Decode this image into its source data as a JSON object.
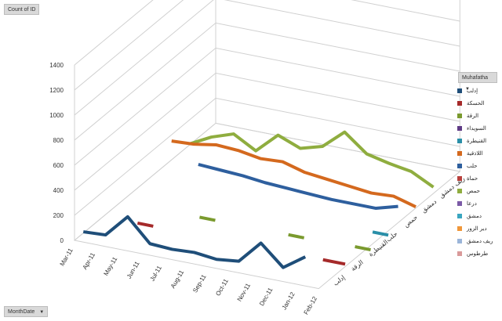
{
  "pivot": {
    "value_field": "Count of ID",
    "row_field": "MonthDate",
    "legend_field": "Muhafatha"
  },
  "chart_data": {
    "type": "line-3d",
    "title": "",
    "ylim": [
      0,
      1400
    ],
    "y_ticks": [
      "0",
      "200",
      "400",
      "600",
      "800",
      "1000",
      "1200",
      "1400"
    ],
    "categories": [
      "Mar-11",
      "Apr-11",
      "May-11",
      "Jun-11",
      "Jul-11",
      "Aug-11",
      "Sep-11",
      "Oct-11",
      "Nov-11",
      "Dec-11",
      "Jan-12",
      "Feb-12"
    ],
    "depth_labels": [
      "إدلب",
      "الرقة",
      "القنيطرة",
      "حلب",
      "حمص",
      "دمشق",
      "ريف دمشق"
    ],
    "legend": [
      {
        "name": "إدلب",
        "color": "#1f4e79"
      },
      {
        "name": "الحسكة",
        "color": "#a52a2a"
      },
      {
        "name": "الرقة",
        "color": "#7a9a2e"
      },
      {
        "name": "السويداء",
        "color": "#5f3b86"
      },
      {
        "name": "القنيطرة",
        "color": "#2a8fa8"
      },
      {
        "name": "اللاذقية",
        "color": "#d4691e"
      },
      {
        "name": "حلب",
        "color": "#2e5f9e"
      },
      {
        "name": "حماة",
        "color": "#b8403c"
      },
      {
        "name": "حمص",
        "color": "#8fad3f"
      },
      {
        "name": "درعا",
        "color": "#7b5aa6"
      },
      {
        "name": "دمشق",
        "color": "#3aa6c0"
      },
      {
        "name": "دير الزور",
        "color": "#f0973a"
      },
      {
        "name": "ريف دمشق",
        "color": "#9bb5d9"
      },
      {
        "name": "طرطوس",
        "color": "#d99a9a"
      }
    ],
    "series": [
      {
        "name": "إدلب",
        "values": [
          10,
          20,
          200,
          20,
          10,
          20,
          0,
          20,
          200,
          40,
          160,
          null
        ]
      },
      {
        "name": "الحسكة",
        "values": [
          null,
          null,
          20,
          null,
          null,
          null,
          null,
          null,
          null,
          null,
          20,
          20
        ]
      },
      {
        "name": "الرقة",
        "values": [
          null,
          null,
          null,
          null,
          20,
          null,
          null,
          null,
          20,
          null,
          null,
          30
        ]
      },
      {
        "name": "القنيطرة",
        "values": [
          null,
          null,
          null,
          null,
          null,
          null,
          null,
          null,
          null,
          null,
          null,
          30
        ]
      },
      {
        "name": "حلب",
        "values": [
          null,
          null,
          150,
          140,
          130,
          110,
          100,
          90,
          80,
          80,
          80,
          130
        ]
      },
      {
        "name": "اللاذقية",
        "values": [
          150,
          160,
          190,
          180,
          150,
          160,
          110,
          90,
          70,
          50,
          60,
          10
        ]
      },
      {
        "name": "حمص",
        "values": [
          10,
          100,
          160,
          60,
          220,
          150,
          200,
          350,
          210,
          170,
          140,
          50
        ]
      }
    ]
  }
}
